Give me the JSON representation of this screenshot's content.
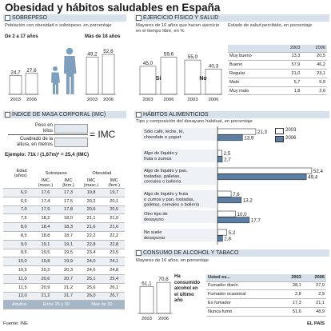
{
  "title": "Obesidad y hábitos saludables en España",
  "colors": {
    "bar_dark": "#5b7fa4",
    "bar_light": "#ffffff",
    "header_bg": "#d7e1eb",
    "silhouette": "#7f9fbf"
  },
  "sobrepeso": {
    "header": "SOBREPESO",
    "subtitle": "Población con obesidad o sobrepeso, en porcentaje",
    "kids_label": "De 2 a 17 años",
    "adults_label": "Más de 18 años",
    "years": [
      "2003",
      "2006"
    ]
  },
  "ejercicio": {
    "header": "EJERCICIO FÍSICO Y SALUD",
    "subtitle": "Mayores de 16 años que hacen ejercicio en el tiempo libre, en %",
    "si_label": "Sí",
    "no_label": "No",
    "salud_subtitle": "Estado de salud percibido, en porcentaje",
    "salud_cols": [
      "2003",
      "2006"
    ],
    "salud_rows": [
      {
        "label": "Muy bueno",
        "v2003": "13,3",
        "v2006": "20,5"
      },
      {
        "label": "Bueno",
        "v2003": "57,9",
        "v2006": "46,2"
      },
      {
        "label": "Regular",
        "v2003": "21,0",
        "v2006": "23,1"
      },
      {
        "label": "Malo",
        "v2003": "5,7",
        "v2006": "5,9"
      },
      {
        "label": "Muy malo",
        "v2003": "1,8",
        "v2006": "2,0"
      }
    ]
  },
  "imc": {
    "header": "ÍNDICE DE MASA CORPORAL (IMC)",
    "peso": "Peso en kilos",
    "altura": "Cuadrado de la altura, en metros",
    "formula_label": "= IMC",
    "ejemplo": "Ejemplo: 71k / (1,67m)² = 25,4 (IMC)",
    "col_edad": "Edad (años)",
    "col_sobrepeso": "Sobrepeso",
    "col_obesidad": "Obesidad",
    "col_masc": "IMC (masc.)",
    "col_fem": "IMC (fem.)",
    "rows": [
      [
        "6,0",
        "17,6",
        "17,3",
        "19,8",
        "19,7"
      ],
      [
        "6,5",
        "17,4",
        "17,5",
        "20,2",
        "20,1"
      ],
      [
        "7,0",
        "17,9",
        "17,8",
        "20,6",
        "20,5"
      ],
      [
        "7,5",
        "18,2",
        "18,0",
        "21,1",
        "21,0"
      ],
      [
        "8,0",
        "18,4",
        "18,3",
        "21,6",
        "21,6"
      ],
      [
        "8,5",
        "18,8",
        "18,7",
        "22,2",
        "22,2"
      ],
      [
        "9,0",
        "19,1",
        "19,1",
        "22,8",
        "22,8"
      ],
      [
        "9,5",
        "19,5",
        "19,5",
        "23,4",
        "23,5"
      ],
      [
        "10,0",
        "19,8",
        "19,9",
        "24,0",
        "24,1"
      ],
      [
        "10,5",
        "20,2",
        "20,3",
        "24,6",
        "24,8"
      ],
      [
        "11,0",
        "20,6",
        "20,7",
        "25,1",
        "25,4"
      ],
      [
        "11,5",
        "20,9",
        "21,2",
        "25,6",
        "26,1"
      ],
      [
        "12,0",
        "21,2",
        "21,7",
        "26,0",
        "26,7"
      ]
    ],
    "adultos": [
      "Adultos",
      "Entre 25 y 30",
      "Más de 30"
    ]
  },
  "habitos": {
    "header": "HÁBITOS ALIMENTICIOS",
    "subtitle": "Tipo y composición del desayuno habitual, en porcentaje",
    "legend": [
      "2003",
      "2006"
    ]
  },
  "alcohol": {
    "header": "CONSUMO DE ALCOHOL Y TABACO",
    "subtitle": "Mayores de 16 años, en porcentaje",
    "note": "Ha consumido alcohol en el último año",
    "table_title": "Usted es...",
    "cols": [
      "2003",
      "2006"
    ],
    "rows": [
      {
        "label": "Fumador diario",
        "v2003": "28,1",
        "v2006": "27,0"
      },
      {
        "label": "Fumador ocasional",
        "v2003": "2,8",
        "v2006": "2,9"
      },
      {
        "label": "Ex fumador",
        "v2003": "17,3",
        "v2006": "21,1"
      },
      {
        "label": "Nunca fumó",
        "v2003": "51,6",
        "v2006": "48,9"
      }
    ]
  },
  "footer": {
    "source": "Fuente: INE",
    "brand": "EL PAÍS"
  },
  "chart_data": [
    {
      "type": "bar",
      "title": "SOBREPESO",
      "categories": [
        "2003",
        "2006"
      ],
      "series": [
        {
          "name": "De 2 a 17 años",
          "values": [
            24.7,
            27.6
          ]
        },
        {
          "name": "Más de 18 años",
          "values": [
            49.2,
            52.6
          ]
        }
      ],
      "ylim": [
        0,
        60
      ]
    },
    {
      "type": "bar",
      "title": "EJERCICIO FÍSICO Y SALUD",
      "categories": [
        "2003",
        "2006"
      ],
      "series": [
        {
          "name": "Sí",
          "values": [
            45.0,
            59.6
          ]
        },
        {
          "name": "No",
          "values": [
            55.0,
            40.3
          ]
        }
      ],
      "ylim": [
        0,
        65
      ]
    },
    {
      "type": "bar",
      "title": "HÁBITOS ALIMENTICIOS",
      "categories": [
        "Sólo café, leche, té, chocolate o yogurt",
        "Algo de líquido y fruta o zumos",
        "Algo de líquido y pan, tostadas, galletas, cereales o bollería",
        "Algo de líquido y fruta o zumos y pan, tostadas, galletas, cereales o bollería",
        "Otro tipo de desayuno",
        "No suele desayunar"
      ],
      "series": [
        {
          "name": "2003",
          "values": [
            21.3,
            2.5,
            52.4,
            7.6,
            10.0,
            5.2
          ]
        },
        {
          "name": "2006",
          "values": [
            13.9,
            2.7,
            49.4,
            13.2,
            17.7,
            2.8
          ]
        }
      ],
      "xlim": [
        0,
        55
      ]
    },
    {
      "type": "bar",
      "title": "CONSUMO DE ALCOHOL Y TABACO",
      "subtitle": "Ha consumido alcohol en el último año",
      "categories": [
        "2003",
        "2006"
      ],
      "values": [
        61.1,
        70.6
      ],
      "ylim": [
        0,
        80
      ]
    }
  ]
}
